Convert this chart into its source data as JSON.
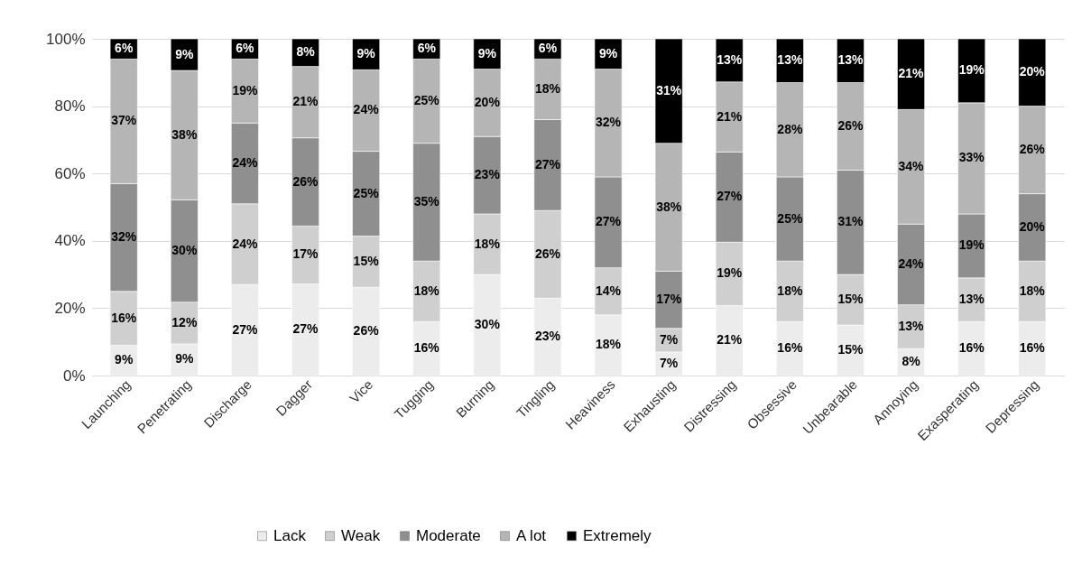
{
  "chart_data": {
    "type": "bar",
    "stacked": true,
    "categories": [
      "Launching",
      "Penetrating",
      "Discharge",
      "Dagger",
      "Vice",
      "Tugging",
      "Burning",
      "Tingling",
      "Heaviness",
      "Exhausting",
      "Distressing",
      "Obsessive",
      "Unbearable",
      "Annoying",
      "Exasperating",
      "Depressing"
    ],
    "series": [
      {
        "name": "Lack",
        "color": "#ececec",
        "values": [
          9,
          9.4,
          27,
          27.2,
          26.2,
          16,
          30,
          23,
          18,
          7,
          20.8,
          16,
          15,
          8,
          16,
          16
        ],
        "value_labels": [
          "9%",
          "9%",
          "27%",
          "27%",
          "26%",
          "16%",
          "30%",
          "23%",
          "18%",
          "7%",
          "21%",
          "16%",
          "15%",
          "8%",
          "16%",
          "16%"
        ]
      },
      {
        "name": "Weak",
        "color": "#cfcfcf",
        "values": [
          16,
          12.4,
          24,
          17.2,
          15.2,
          18,
          18,
          26,
          14,
          7,
          18.8,
          18,
          15,
          13,
          13,
          18
        ],
        "value_labels": [
          "16%",
          "12%",
          "24%",
          "17%",
          "15%",
          "18%",
          "18%",
          "26%",
          "14%",
          "7%",
          "19%",
          "18%",
          "15%",
          "13%",
          "13%",
          "18%"
        ]
      },
      {
        "name": "Moderate",
        "color": "#8f8f8f",
        "values": [
          32,
          30.4,
          24,
          26.2,
          25.2,
          35,
          23,
          27,
          27,
          17,
          26.8,
          25,
          31,
          24,
          19,
          20
        ],
        "value_labels": [
          "32%",
          "30%",
          "24%",
          "26%",
          "25%",
          "35%",
          "23%",
          "27%",
          "27%",
          "17%",
          "27%",
          "25%",
          "31%",
          "24%",
          "19%",
          "20%"
        ]
      },
      {
        "name": "A lot",
        "color": "#b5b5b5",
        "values": [
          37,
          38.4,
          19,
          21.2,
          24.2,
          25,
          20,
          18,
          32,
          38,
          20.8,
          28,
          26,
          34,
          33,
          26
        ],
        "value_labels": [
          "37%",
          "38%",
          "19%",
          "21%",
          "24%",
          "25%",
          "20%",
          "18%",
          "32%",
          "38%",
          "21%",
          "28%",
          "26%",
          "34%",
          "33%",
          "26%"
        ]
      },
      {
        "name": "Extremely",
        "color": "#000000",
        "values": [
          6,
          9.4,
          6,
          8.2,
          9.2,
          6,
          9,
          6,
          9,
          31,
          12.8,
          13,
          13,
          21,
          19,
          20
        ],
        "value_labels": [
          "6%",
          "9%",
          "6%",
          "8%",
          "9%",
          "6%",
          "9%",
          "6%",
          "9%",
          "31%",
          "13%",
          "13%",
          "13%",
          "21%",
          "19%",
          "20%"
        ]
      }
    ],
    "ylim": [
      0,
      100
    ],
    "yticks": [
      {
        "value": 0,
        "label": "0%"
      },
      {
        "value": 20,
        "label": "20%"
      },
      {
        "value": 40,
        "label": "40%"
      },
      {
        "value": 60,
        "label": "60%"
      },
      {
        "value": 80,
        "label": "80%"
      },
      {
        "value": 100,
        "label": "100%"
      }
    ],
    "grid": "y",
    "legend": "bottom"
  }
}
